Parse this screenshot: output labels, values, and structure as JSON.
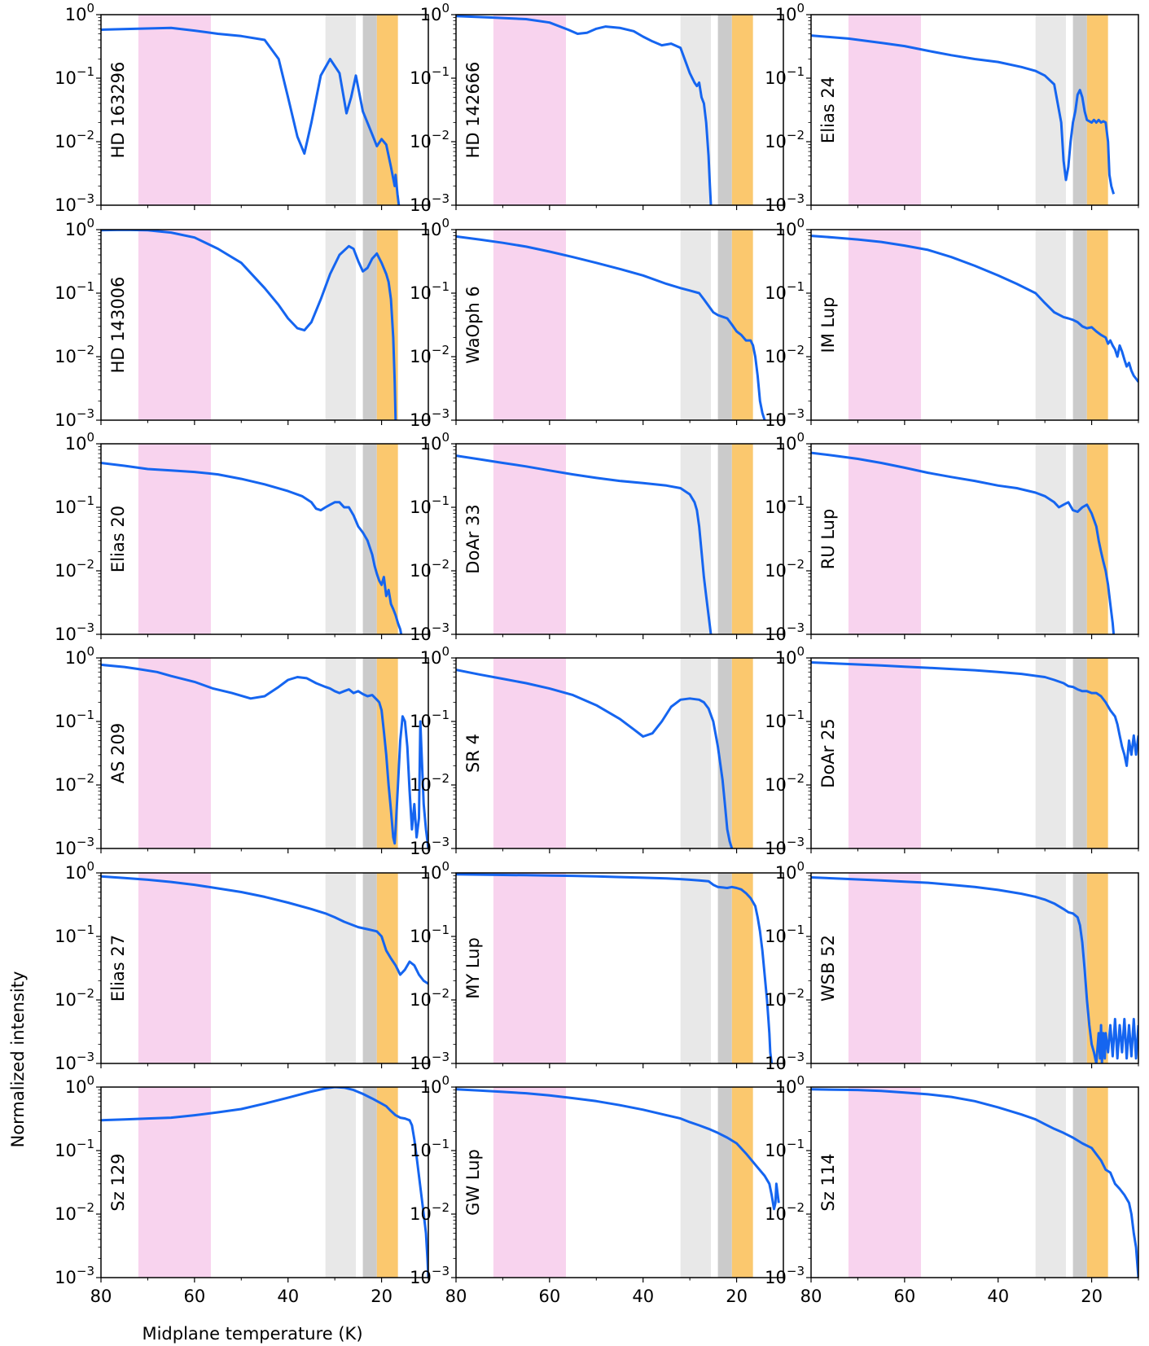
{
  "figure": {
    "ylabel": "Normalized intensity",
    "xlabel": "Midplane temperature (K)"
  },
  "shading": [
    {
      "name": "pink-band",
      "x_range": [
        72,
        56.5
      ],
      "color": "#f8d3ee"
    },
    {
      "name": "light-gray-band",
      "x_range": [
        32,
        25.5
      ],
      "color": "#e8e8e8"
    },
    {
      "name": "dark-gray-band",
      "x_range": [
        24,
        21
      ],
      "color": "#cbcbcb"
    },
    {
      "name": "orange-band",
      "x_range": [
        21,
        16.5
      ],
      "color": "#fbc86e"
    }
  ],
  "line_color": "#1565f0",
  "chart_data": [
    {
      "type": "line",
      "panel": "HD 163296",
      "xlim": [
        80,
        10
      ],
      "ylim": [
        0.001,
        1
      ],
      "yscale": "log",
      "x": [
        80,
        72,
        65,
        60,
        55,
        50,
        45,
        42,
        40,
        38,
        36.5,
        35,
        33,
        31,
        29,
        27.5,
        26.5,
        25.5,
        24,
        22,
        21,
        20,
        19,
        18,
        17.2,
        17,
        16.6,
        16.3
      ],
      "y": [
        0.58,
        0.6,
        0.62,
        0.56,
        0.5,
        0.46,
        0.4,
        0.2,
        0.05,
        0.012,
        0.0065,
        0.02,
        0.11,
        0.2,
        0.12,
        0.028,
        0.05,
        0.11,
        0.03,
        0.013,
        0.0085,
        0.011,
        0.009,
        0.004,
        0.002,
        0.003,
        0.0015,
        0.001
      ]
    },
    {
      "type": "line",
      "panel": "HD 142666",
      "xlim": [
        80,
        10
      ],
      "ylim": [
        0.001,
        1
      ],
      "yscale": "log",
      "x": [
        80,
        72,
        65,
        60,
        56,
        54,
        52,
        50,
        48,
        45,
        42,
        40,
        38,
        36,
        34,
        32,
        30,
        29,
        28.5,
        28,
        27.5,
        27,
        26.5,
        26,
        25.7,
        25.5
      ],
      "y": [
        0.95,
        0.9,
        0.85,
        0.75,
        0.58,
        0.5,
        0.52,
        0.6,
        0.65,
        0.62,
        0.55,
        0.45,
        0.38,
        0.33,
        0.35,
        0.3,
        0.12,
        0.085,
        0.075,
        0.085,
        0.05,
        0.04,
        0.02,
        0.006,
        0.002,
        0.001
      ]
    },
    {
      "type": "line",
      "panel": "Elias 24",
      "xlim": [
        80,
        10
      ],
      "ylim": [
        0.001,
        1
      ],
      "yscale": "log",
      "x": [
        80,
        72,
        65,
        60,
        55,
        50,
        45,
        40,
        35,
        32,
        30,
        28,
        26.5,
        26,
        25.5,
        25,
        24.5,
        24,
        23.5,
        23,
        22.5,
        22,
        21.5,
        21,
        20,
        19.5,
        19,
        18.5,
        18,
        17.5,
        17,
        16.5,
        16.2,
        15.8,
        15.3
      ],
      "y": [
        0.47,
        0.42,
        0.36,
        0.32,
        0.27,
        0.23,
        0.2,
        0.18,
        0.15,
        0.13,
        0.11,
        0.08,
        0.02,
        0.005,
        0.0025,
        0.004,
        0.01,
        0.02,
        0.03,
        0.055,
        0.065,
        0.05,
        0.03,
        0.022,
        0.02,
        0.022,
        0.02,
        0.022,
        0.02,
        0.021,
        0.02,
        0.01,
        0.003,
        0.002,
        0.0015
      ]
    },
    {
      "type": "line",
      "panel": "HD 143006",
      "xlim": [
        80,
        10
      ],
      "ylim": [
        0.001,
        1
      ],
      "yscale": "log",
      "x": [
        80,
        75,
        70,
        65,
        60,
        55,
        50,
        45,
        42,
        40,
        38,
        36.5,
        35,
        33,
        31,
        29,
        27,
        26,
        25,
        24,
        23,
        22,
        21,
        20,
        19,
        18.5,
        18,
        17.5,
        17.2,
        17
      ],
      "y": [
        0.98,
        0.99,
        0.98,
        0.9,
        0.75,
        0.5,
        0.3,
        0.12,
        0.065,
        0.04,
        0.028,
        0.026,
        0.035,
        0.08,
        0.2,
        0.4,
        0.55,
        0.5,
        0.32,
        0.22,
        0.25,
        0.35,
        0.42,
        0.3,
        0.2,
        0.15,
        0.08,
        0.02,
        0.004,
        0.001
      ]
    },
    {
      "type": "line",
      "panel": "WaOph 6",
      "xlim": [
        80,
        10
      ],
      "ylim": [
        0.001,
        1
      ],
      "yscale": "log",
      "x": [
        80,
        75,
        70,
        65,
        60,
        55,
        50,
        45,
        40,
        35,
        32,
        30,
        28,
        27,
        25,
        24,
        22,
        21,
        20,
        19,
        18,
        17,
        16.5,
        16,
        15.5,
        15,
        14.5,
        14
      ],
      "y": [
        0.78,
        0.7,
        0.62,
        0.54,
        0.45,
        0.37,
        0.3,
        0.24,
        0.19,
        0.14,
        0.12,
        0.11,
        0.1,
        0.08,
        0.05,
        0.045,
        0.04,
        0.032,
        0.025,
        0.022,
        0.018,
        0.018,
        0.015,
        0.01,
        0.005,
        0.002,
        0.0013,
        0.001
      ]
    },
    {
      "type": "line",
      "panel": "IM Lup",
      "xlim": [
        80,
        10
      ],
      "ylim": [
        0.001,
        1
      ],
      "yscale": "log",
      "x": [
        80,
        75,
        70,
        65,
        60,
        55,
        50,
        45,
        40,
        36,
        32,
        30,
        28,
        26,
        25,
        24,
        23,
        22,
        21,
        20,
        19,
        18,
        17,
        16.5,
        16,
        15.5,
        15,
        14.5,
        14,
        13.5,
        13,
        12.5,
        12,
        11.5,
        11,
        10.5,
        10
      ],
      "y": [
        0.8,
        0.75,
        0.7,
        0.64,
        0.56,
        0.48,
        0.37,
        0.27,
        0.19,
        0.14,
        0.1,
        0.07,
        0.05,
        0.042,
        0.04,
        0.038,
        0.035,
        0.03,
        0.028,
        0.029,
        0.025,
        0.022,
        0.02,
        0.016,
        0.018,
        0.015,
        0.013,
        0.01,
        0.015,
        0.012,
        0.009,
        0.007,
        0.008,
        0.006,
        0.005,
        0.0045,
        0.004
      ]
    },
    {
      "type": "line",
      "panel": "Elias 20",
      "xlim": [
        80,
        10
      ],
      "ylim": [
        0.001,
        1
      ],
      "yscale": "log",
      "x": [
        80,
        75,
        70,
        65,
        60,
        55,
        50,
        45,
        40,
        37,
        35,
        34,
        33,
        32,
        31,
        30,
        29,
        28,
        27,
        26,
        25,
        24,
        23,
        22,
        21.5,
        21,
        20.5,
        20,
        19.5,
        19,
        18.5,
        18,
        17.5,
        17,
        16.5,
        16,
        15.8
      ],
      "y": [
        0.5,
        0.45,
        0.4,
        0.38,
        0.36,
        0.33,
        0.28,
        0.23,
        0.18,
        0.15,
        0.12,
        0.095,
        0.09,
        0.1,
        0.11,
        0.12,
        0.12,
        0.1,
        0.1,
        0.075,
        0.05,
        0.04,
        0.03,
        0.018,
        0.012,
        0.009,
        0.007,
        0.006,
        0.008,
        0.004,
        0.005,
        0.003,
        0.0025,
        0.002,
        0.0015,
        0.0012,
        0.001
      ]
    },
    {
      "type": "line",
      "panel": "DoAr 33",
      "xlim": [
        80,
        10
      ],
      "ylim": [
        0.001,
        1
      ],
      "yscale": "log",
      "x": [
        80,
        75,
        70,
        65,
        60,
        55,
        50,
        45,
        40,
        35,
        32,
        30,
        29,
        28.5,
        28,
        27.5,
        27,
        26.5,
        26,
        25.8,
        25.5
      ],
      "y": [
        0.65,
        0.57,
        0.5,
        0.44,
        0.38,
        0.33,
        0.29,
        0.26,
        0.24,
        0.22,
        0.2,
        0.16,
        0.12,
        0.09,
        0.05,
        0.02,
        0.008,
        0.004,
        0.002,
        0.0015,
        0.001
      ]
    },
    {
      "type": "line",
      "panel": "RU Lup",
      "xlim": [
        80,
        10
      ],
      "ylim": [
        0.001,
        1
      ],
      "yscale": "log",
      "x": [
        80,
        75,
        70,
        65,
        60,
        55,
        50,
        45,
        40,
        36,
        32,
        30,
        28,
        27,
        26,
        25,
        24,
        23,
        22,
        21,
        20,
        19,
        18.5,
        18,
        17.5,
        17,
        16.5,
        16,
        15.5,
        15.3
      ],
      "y": [
        0.72,
        0.65,
        0.58,
        0.5,
        0.42,
        0.35,
        0.3,
        0.26,
        0.22,
        0.2,
        0.17,
        0.15,
        0.12,
        0.1,
        0.11,
        0.12,
        0.09,
        0.085,
        0.1,
        0.11,
        0.08,
        0.05,
        0.03,
        0.02,
        0.014,
        0.01,
        0.006,
        0.003,
        0.0015,
        0.001
      ]
    },
    {
      "type": "line",
      "panel": "AS 209",
      "xlim": [
        80,
        10
      ],
      "ylim": [
        0.001,
        1
      ],
      "yscale": "log",
      "x": [
        80,
        75,
        72,
        68,
        65,
        60,
        56,
        52,
        48,
        45,
        42,
        40,
        38,
        36,
        34,
        32,
        31,
        30,
        29,
        28,
        27,
        26,
        25,
        24,
        23,
        22,
        21,
        20.5,
        20,
        19.5,
        19,
        18.5,
        18,
        17.5,
        17.2,
        17,
        16.5,
        16,
        15.5,
        15,
        14.5,
        14,
        13.5,
        13,
        12.5,
        12,
        11.7,
        11.5,
        11,
        10.5,
        10
      ],
      "y": [
        0.78,
        0.72,
        0.67,
        0.6,
        0.52,
        0.42,
        0.33,
        0.28,
        0.23,
        0.25,
        0.35,
        0.45,
        0.5,
        0.48,
        0.4,
        0.35,
        0.33,
        0.3,
        0.28,
        0.3,
        0.32,
        0.28,
        0.3,
        0.27,
        0.25,
        0.26,
        0.22,
        0.2,
        0.15,
        0.07,
        0.03,
        0.01,
        0.004,
        0.0015,
        0.0012,
        0.002,
        0.01,
        0.05,
        0.12,
        0.1,
        0.04,
        0.008,
        0.002,
        0.005,
        0.0015,
        0.003,
        0.1,
        0.04,
        0.005,
        0.002,
        0.001
      ]
    },
    {
      "type": "line",
      "panel": "SR 4",
      "xlim": [
        80,
        10
      ],
      "ylim": [
        0.001,
        1
      ],
      "yscale": "log",
      "x": [
        80,
        75,
        70,
        65,
        60,
        55,
        50,
        45,
        42,
        40,
        38,
        36,
        34,
        32,
        30,
        28,
        27,
        26,
        25,
        24,
        23,
        22.5,
        22,
        21.5,
        21
      ],
      "y": [
        0.65,
        0.55,
        0.47,
        0.4,
        0.33,
        0.26,
        0.18,
        0.11,
        0.075,
        0.058,
        0.065,
        0.1,
        0.17,
        0.22,
        0.23,
        0.22,
        0.2,
        0.16,
        0.1,
        0.04,
        0.012,
        0.005,
        0.002,
        0.0013,
        0.001
      ]
    },
    {
      "type": "line",
      "panel": "DoAr 25",
      "xlim": [
        80,
        10
      ],
      "ylim": [
        0.001,
        1
      ],
      "yscale": "log",
      "x": [
        80,
        75,
        70,
        65,
        60,
        55,
        50,
        45,
        40,
        35,
        30,
        28,
        26,
        25,
        24,
        23,
        22,
        21,
        20,
        19,
        18,
        17,
        16,
        15,
        14.5,
        14,
        13.5,
        13,
        12.5,
        12,
        11.5,
        11,
        10.5,
        10
      ],
      "y": [
        0.85,
        0.82,
        0.79,
        0.76,
        0.73,
        0.7,
        0.67,
        0.64,
        0.6,
        0.56,
        0.5,
        0.45,
        0.4,
        0.36,
        0.35,
        0.32,
        0.3,
        0.3,
        0.28,
        0.28,
        0.25,
        0.2,
        0.15,
        0.12,
        0.09,
        0.06,
        0.04,
        0.03,
        0.02,
        0.05,
        0.03,
        0.06,
        0.03,
        0.06
      ]
    },
    {
      "type": "line",
      "panel": "Elias 27",
      "xlim": [
        80,
        10
      ],
      "ylim": [
        0.001,
        1
      ],
      "yscale": "log",
      "x": [
        80,
        75,
        70,
        65,
        60,
        55,
        50,
        45,
        40,
        35,
        32,
        30,
        28,
        25,
        23,
        21,
        20,
        19,
        18,
        17,
        16,
        15,
        14,
        13,
        12,
        11,
        10
      ],
      "y": [
        0.88,
        0.83,
        0.78,
        0.72,
        0.65,
        0.57,
        0.5,
        0.42,
        0.34,
        0.27,
        0.23,
        0.2,
        0.17,
        0.14,
        0.13,
        0.12,
        0.1,
        0.06,
        0.045,
        0.035,
        0.025,
        0.03,
        0.04,
        0.035,
        0.025,
        0.02,
        0.018
      ]
    },
    {
      "type": "line",
      "panel": "MY Lup",
      "xlim": [
        80,
        10
      ],
      "ylim": [
        0.001,
        1
      ],
      "yscale": "log",
      "x": [
        80,
        75,
        70,
        65,
        60,
        55,
        50,
        45,
        40,
        35,
        32,
        30,
        28,
        26,
        25,
        24,
        22,
        21,
        20,
        19,
        18,
        17,
        16,
        15.5,
        15,
        14.5,
        14,
        13.5,
        13.2,
        13,
        12.8,
        12.5
      ],
      "y": [
        0.95,
        0.94,
        0.93,
        0.92,
        0.91,
        0.9,
        0.88,
        0.86,
        0.84,
        0.82,
        0.8,
        0.78,
        0.76,
        0.74,
        0.65,
        0.6,
        0.58,
        0.6,
        0.58,
        0.55,
        0.48,
        0.4,
        0.3,
        0.2,
        0.12,
        0.06,
        0.025,
        0.01,
        0.005,
        0.003,
        0.0015,
        0.001
      ]
    },
    {
      "type": "line",
      "panel": "WSB 52",
      "xlim": [
        80,
        10
      ],
      "ylim": [
        0.001,
        1
      ],
      "yscale": "log",
      "x": [
        80,
        75,
        70,
        65,
        60,
        55,
        50,
        45,
        40,
        35,
        32,
        30,
        28,
        26,
        25,
        24,
        23,
        22.5,
        22,
        21.5,
        21,
        20.5,
        20,
        19.5,
        19,
        18.5,
        18.2,
        18,
        17.8,
        17.5,
        17.2,
        17,
        16.5,
        16,
        15.5,
        15,
        14.5,
        14,
        13.5,
        13,
        12.5,
        12,
        11.5,
        11,
        10.5,
        10
      ],
      "y": [
        0.85,
        0.82,
        0.79,
        0.76,
        0.73,
        0.7,
        0.65,
        0.6,
        0.54,
        0.47,
        0.42,
        0.38,
        0.33,
        0.27,
        0.24,
        0.23,
        0.2,
        0.15,
        0.08,
        0.03,
        0.01,
        0.004,
        0.002,
        0.0015,
        0.001,
        0.003,
        0.0012,
        0.004,
        0.001,
        0.003,
        0.0012,
        0.003,
        0.0015,
        0.004,
        0.0013,
        0.005,
        0.0012,
        0.004,
        0.0015,
        0.005,
        0.0012,
        0.004,
        0.0013,
        0.005,
        0.0012,
        0.004
      ]
    },
    {
      "type": "line",
      "panel": "Sz 129",
      "xlim": [
        80,
        10
      ],
      "ylim": [
        0.001,
        1
      ],
      "yscale": "log",
      "x": [
        80,
        75,
        70,
        65,
        60,
        55,
        50,
        45,
        40,
        35,
        32,
        30,
        28,
        26,
        24,
        22,
        20,
        19,
        18,
        17,
        16,
        15,
        14,
        13.5,
        13,
        12.5,
        12,
        11.5,
        11,
        10.5,
        10.2,
        10
      ],
      "y": [
        0.3,
        0.31,
        0.32,
        0.33,
        0.36,
        0.4,
        0.45,
        0.55,
        0.68,
        0.85,
        0.95,
        1.0,
        0.98,
        0.9,
        0.78,
        0.66,
        0.55,
        0.5,
        0.42,
        0.36,
        0.33,
        0.32,
        0.3,
        0.25,
        0.15,
        0.08,
        0.04,
        0.02,
        0.01,
        0.005,
        0.002,
        0.001
      ]
    },
    {
      "type": "line",
      "panel": "GW Lup",
      "xlim": [
        80,
        10
      ],
      "ylim": [
        0.001,
        1
      ],
      "yscale": "log",
      "x": [
        80,
        75,
        70,
        65,
        60,
        55,
        50,
        45,
        40,
        35,
        32,
        30,
        28,
        26,
        24,
        22,
        20,
        18,
        16,
        14,
        13,
        12.5,
        12,
        11.7,
        11.5,
        11.2,
        11
      ],
      "y": [
        0.92,
        0.88,
        0.84,
        0.8,
        0.74,
        0.67,
        0.6,
        0.52,
        0.44,
        0.36,
        0.32,
        0.28,
        0.25,
        0.22,
        0.19,
        0.16,
        0.13,
        0.09,
        0.06,
        0.04,
        0.03,
        0.02,
        0.012,
        0.015,
        0.03,
        0.02,
        0.015
      ]
    },
    {
      "type": "line",
      "panel": "Sz 114",
      "xlim": [
        80,
        10
      ],
      "ylim": [
        0.001,
        1
      ],
      "yscale": "log",
      "x": [
        80,
        75,
        70,
        65,
        60,
        55,
        50,
        45,
        40,
        35,
        32,
        30,
        28,
        26,
        24,
        22,
        20,
        18,
        17,
        16,
        15,
        14,
        13,
        12,
        11.5,
        11,
        10.5,
        10.2,
        10
      ],
      "y": [
        0.92,
        0.91,
        0.9,
        0.87,
        0.82,
        0.77,
        0.7,
        0.6,
        0.48,
        0.37,
        0.31,
        0.26,
        0.22,
        0.19,
        0.16,
        0.13,
        0.11,
        0.07,
        0.05,
        0.045,
        0.03,
        0.025,
        0.02,
        0.015,
        0.01,
        0.005,
        0.003,
        0.0015,
        0.001
      ]
    }
  ]
}
